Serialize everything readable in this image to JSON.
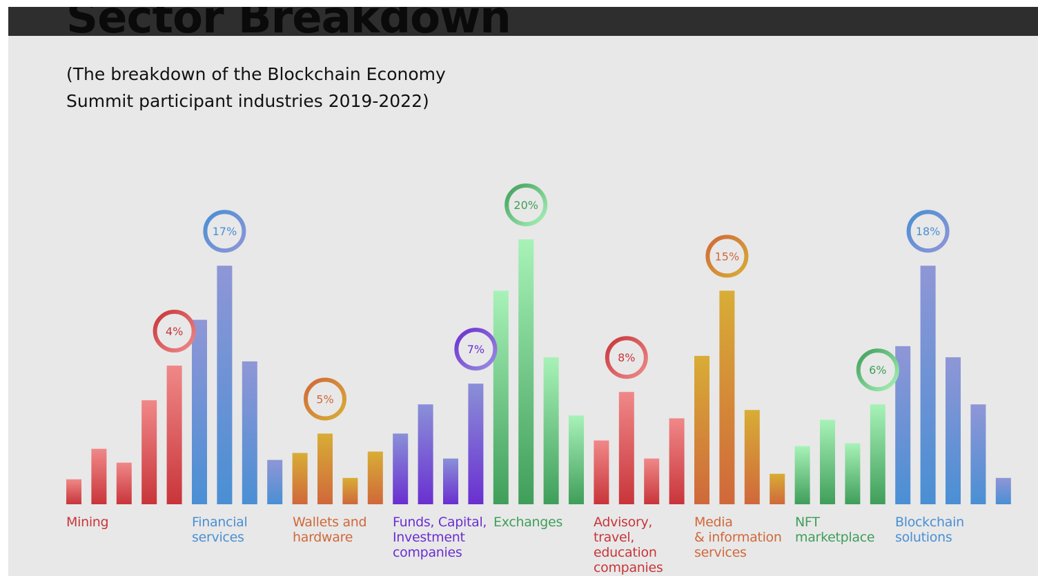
{
  "title": "Sector Breakdown",
  "subtitle": "(The breakdown of the Blockchain Economy Summit participant industries 2019-2022)",
  "colors": {
    "background": "#e8e8e8",
    "top_bar": "#2e2e2e",
    "red": "#c8353a",
    "blue": "#4a8fd4",
    "orange": "#d0683a",
    "purple": "#6a2fd0",
    "green": "#3f9e5a"
  },
  "chart_data": {
    "type": "bar",
    "categories": [
      {
        "label": "Mining",
        "percent": "4%",
        "color": "red",
        "bar_values": [
          18,
          40,
          30,
          75,
          100
        ]
      },
      {
        "label": "Financial\nservices",
        "percent": "17%",
        "color": "blue",
        "bar_values": [
          133,
          172,
          103,
          32
        ]
      },
      {
        "label": "Wallets and\nhardware",
        "percent": "5%",
        "color": "orange",
        "bar_values": [
          37,
          51,
          19,
          38
        ]
      },
      {
        "label": "Funds, Capital,\nInvestment\ncompanies",
        "percent": "7%",
        "color": "purple",
        "bar_values": [
          51,
          72,
          33,
          87
        ]
      },
      {
        "label": "Exchanges",
        "percent": "20%",
        "color": "green",
        "bar_values": [
          154,
          191,
          106,
          64
        ]
      },
      {
        "label": "Advisory,\ntravel,\neducation\ncompanies",
        "percent": "8%",
        "color": "red",
        "bar_values": [
          46,
          81,
          33,
          62
        ]
      },
      {
        "label": "Media\n& information\nservices",
        "percent": "15%",
        "color": "orange",
        "bar_values": [
          107,
          154,
          68,
          22
        ]
      },
      {
        "label": "NFT\nmarketplace",
        "percent": "6%",
        "color": "green",
        "bar_values": [
          42,
          61,
          44,
          72
        ]
      },
      {
        "label": "Blockchain\nsolutions",
        "percent": "18%",
        "color": "blue",
        "bar_values": [
          114,
          172,
          106,
          72,
          19
        ]
      }
    ]
  }
}
